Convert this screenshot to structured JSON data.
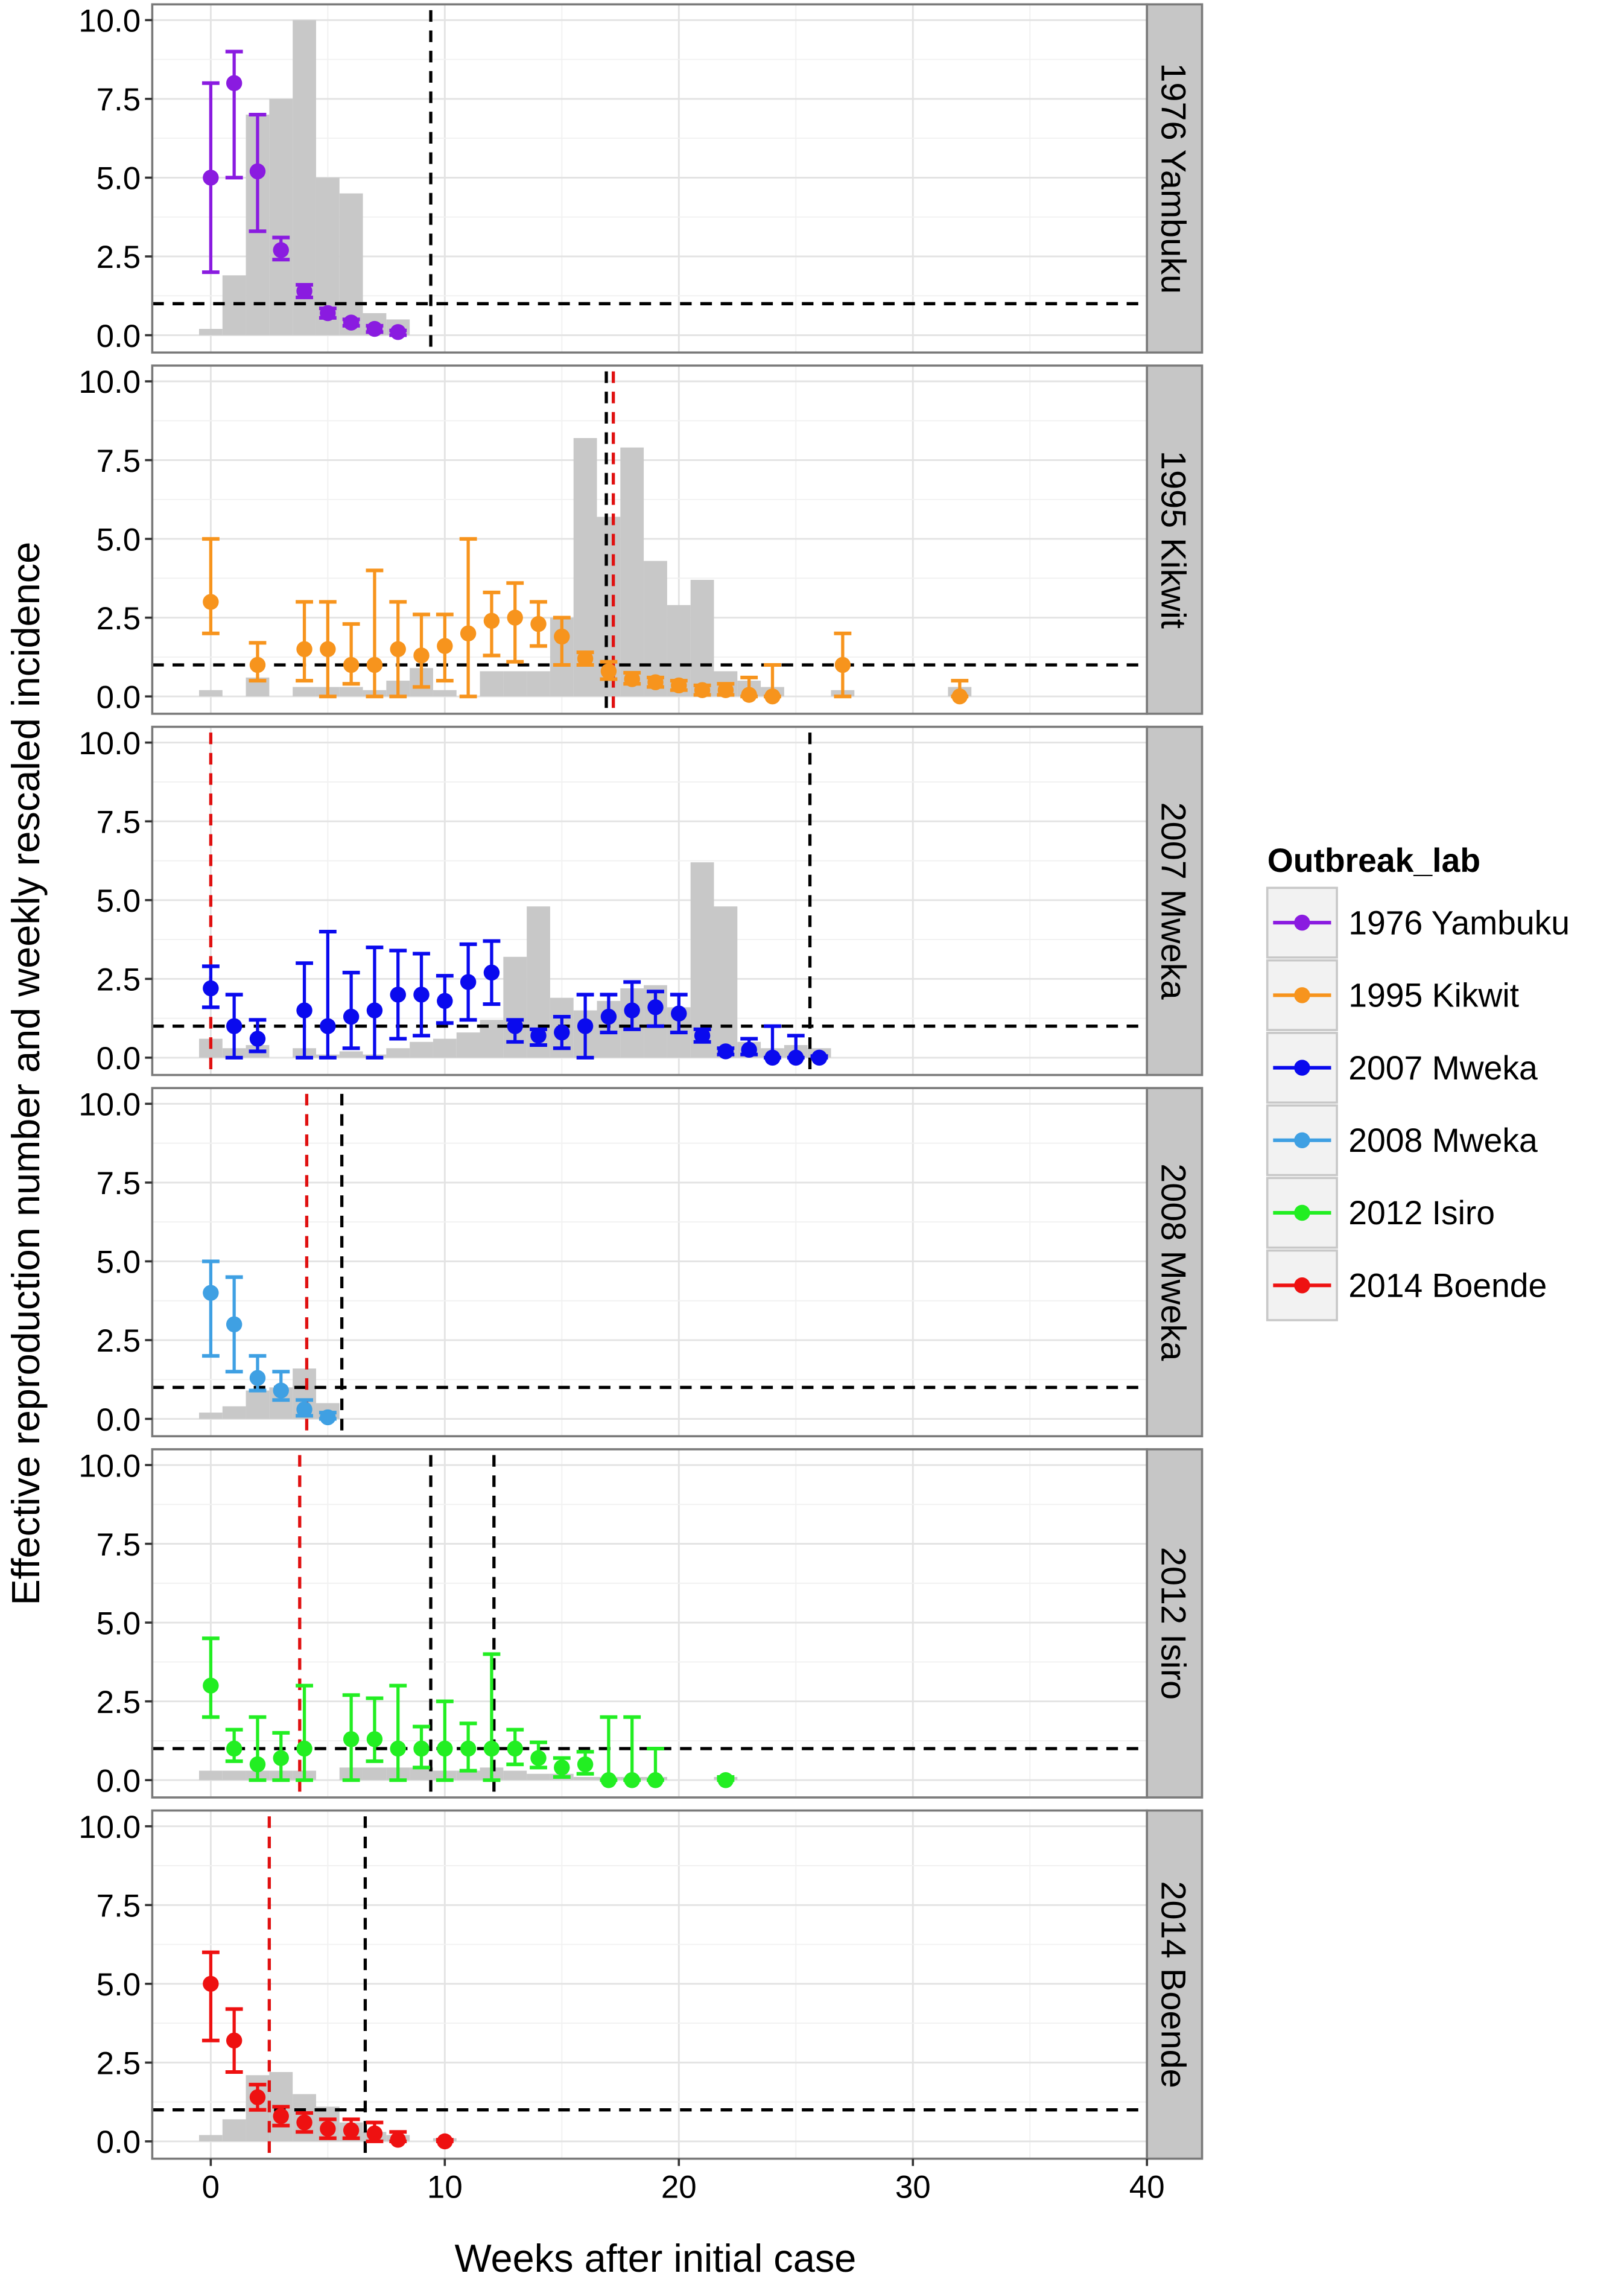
{
  "chart_data": {
    "type": "faceted-errorbar-bar",
    "ylabel": "Effective reproduction number and weekly rescaled incidence",
    "xlabel": "Weeks after initial case",
    "xlim": [
      -2.5,
      40
    ],
    "ylim": [
      -0.55,
      10.5
    ],
    "x_ticks": [
      0,
      10,
      20,
      30,
      40
    ],
    "y_ticks": [
      0,
      2.5,
      5,
      7.5,
      10
    ],
    "y_tick_labels": [
      "0.0",
      "2.5",
      "5.0",
      "7.5",
      "10.0"
    ],
    "x_tick_labels": [
      "0",
      "10",
      "20",
      "30",
      "40"
    ],
    "reference_line_y": 1,
    "legend": {
      "title": "Outbreak_lab",
      "placement": "right",
      "entries": [
        "1976 Yambuku",
        "1995 Kikwit",
        "2007 Mweka",
        "2008 Mweka",
        "2012 Isiro",
        "2014 Boende"
      ]
    },
    "panels": [
      {
        "label": "1976 Yambuku",
        "color": "#8A1BE0",
        "points": [
          [
            0,
            5,
            2,
            8
          ],
          [
            1,
            8,
            5,
            9
          ],
          [
            2,
            5.2,
            3.3,
            7
          ],
          [
            3,
            2.7,
            2.4,
            3.1
          ],
          [
            4,
            1.4,
            1.2,
            1.6
          ],
          [
            5,
            0.7,
            0.55,
            0.85
          ],
          [
            6,
            0.4,
            0.3,
            0.5
          ],
          [
            7,
            0.2,
            0.1,
            0.3
          ],
          [
            8,
            0.1,
            0,
            0.15
          ]
        ],
        "bars": [
          [
            0,
            0.2
          ],
          [
            1,
            1.9
          ],
          [
            2,
            7
          ],
          [
            3,
            7.5
          ],
          [
            4,
            10
          ],
          [
            5,
            5
          ],
          [
            6,
            4.5
          ],
          [
            7,
            0.7
          ],
          [
            8,
            0.5
          ]
        ],
        "vlines_black": [
          9.4
        ],
        "vlines_red": []
      },
      {
        "label": "1995 Kikwit",
        "color": "#F7941D",
        "points": [
          [
            0,
            3,
            2,
            5
          ],
          [
            2,
            1,
            0.5,
            1.7
          ],
          [
            4,
            1.5,
            0.5,
            3
          ],
          [
            5,
            1.5,
            0,
            3
          ],
          [
            6,
            1,
            0.4,
            2.3
          ],
          [
            7,
            1,
            0,
            4
          ],
          [
            8,
            1.5,
            0,
            3
          ],
          [
            9,
            1.3,
            0.3,
            2.6
          ],
          [
            10,
            1.6,
            0.5,
            2.6
          ],
          [
            11,
            2,
            0,
            5
          ],
          [
            12,
            2.4,
            1.3,
            3.3
          ],
          [
            13,
            2.5,
            1.1,
            3.6
          ],
          [
            14,
            2.3,
            1.6,
            3
          ],
          [
            15,
            1.9,
            1,
            2.5
          ],
          [
            16,
            1.2,
            1,
            1.4
          ],
          [
            17,
            0.8,
            0.55,
            1.1
          ],
          [
            18,
            0.55,
            0.4,
            0.75
          ],
          [
            19,
            0.45,
            0.3,
            0.6
          ],
          [
            20,
            0.35,
            0.2,
            0.5
          ],
          [
            21,
            0.2,
            0.05,
            0.35
          ],
          [
            22,
            0.2,
            0.05,
            0.4
          ],
          [
            23,
            0.05,
            0,
            0.6
          ],
          [
            24,
            0,
            0,
            1
          ],
          [
            27,
            1,
            0,
            2
          ],
          [
            32,
            0,
            0,
            0.5
          ]
        ],
        "bars": [
          [
            0,
            0.2
          ],
          [
            2,
            0.6
          ],
          [
            4,
            0.3
          ],
          [
            5,
            0.3
          ],
          [
            6,
            0.3
          ],
          [
            7,
            0.2
          ],
          [
            8,
            0.5
          ],
          [
            9,
            0.9
          ],
          [
            10,
            0.2
          ],
          [
            12,
            0.8
          ],
          [
            13,
            0.8
          ],
          [
            14,
            0.8
          ],
          [
            15,
            2.5
          ],
          [
            16,
            8.2
          ],
          [
            17,
            5.7
          ],
          [
            18,
            7.9
          ],
          [
            19,
            4.3
          ],
          [
            20,
            2.9
          ],
          [
            21,
            3.7
          ],
          [
            22,
            0.8
          ],
          [
            23,
            0.5
          ],
          [
            24,
            0.3
          ],
          [
            27,
            0.2
          ],
          [
            32,
            0.3
          ]
        ],
        "vlines_black": [
          16.9
        ],
        "vlines_red": [
          17.2
        ]
      },
      {
        "label": "2007 Mweka",
        "color": "#0A0AEE",
        "points": [
          [
            0,
            2.2,
            1.6,
            2.9
          ],
          [
            1,
            1,
            0,
            2
          ],
          [
            2,
            0.6,
            0.2,
            1.2
          ],
          [
            4,
            1.5,
            0,
            3
          ],
          [
            5,
            1,
            0,
            4
          ],
          [
            6,
            1.3,
            0.3,
            2.7
          ],
          [
            7,
            1.5,
            0,
            3.5
          ],
          [
            8,
            2,
            0.6,
            3.4
          ],
          [
            9,
            2,
            0.7,
            3.3
          ],
          [
            10,
            1.8,
            1.1,
            2.6
          ],
          [
            11,
            2.4,
            1.2,
            3.6
          ],
          [
            12,
            2.7,
            1.7,
            3.7
          ],
          [
            13,
            1,
            0.5,
            1.2
          ],
          [
            14,
            0.7,
            0.4,
            0.9
          ],
          [
            15,
            0.8,
            0.3,
            1.3
          ],
          [
            16,
            1,
            0,
            2
          ],
          [
            17,
            1.3,
            0.8,
            2
          ],
          [
            18,
            1.5,
            0.9,
            2.4
          ],
          [
            19,
            1.6,
            1,
            2.1
          ],
          [
            20,
            1.4,
            0.8,
            2
          ],
          [
            21,
            0.7,
            0.5,
            0.9
          ],
          [
            22,
            0.2,
            0.1,
            0.3
          ],
          [
            23,
            0.25,
            0.1,
            0.6
          ],
          [
            24,
            0,
            0,
            1
          ],
          [
            25,
            0,
            0,
            0.7
          ],
          [
            26,
            0,
            0,
            0.05
          ]
        ],
        "bars": [
          [
            0,
            0.6
          ],
          [
            1,
            0.3
          ],
          [
            2,
            0.4
          ],
          [
            4,
            0.3
          ],
          [
            5,
            0.1
          ],
          [
            6,
            0.2
          ],
          [
            7,
            0.1
          ],
          [
            8,
            0.3
          ],
          [
            9,
            0.5
          ],
          [
            10,
            0.6
          ],
          [
            11,
            0.8
          ],
          [
            12,
            1.2
          ],
          [
            13,
            3.2
          ],
          [
            14,
            4.8
          ],
          [
            15,
            1.9
          ],
          [
            16,
            1.5
          ],
          [
            17,
            1.8
          ],
          [
            18,
            2.2
          ],
          [
            19,
            2.3
          ],
          [
            20,
            1.6
          ],
          [
            21,
            6.2
          ],
          [
            22,
            4.8
          ],
          [
            23,
            0.5
          ],
          [
            24,
            0.3
          ],
          [
            25,
            0.4
          ],
          [
            26,
            0.3
          ]
        ],
        "vlines_black": [
          25.6
        ],
        "vlines_red": [
          0
        ]
      },
      {
        "label": "2008 Mweka",
        "color": "#3FA0E3",
        "points": [
          [
            0,
            4,
            2,
            5
          ],
          [
            1,
            3,
            1.5,
            4.5
          ],
          [
            2,
            1.3,
            0.9,
            2
          ],
          [
            3,
            0.9,
            0.6,
            1.5
          ],
          [
            4,
            0.3,
            0.1,
            0.6
          ],
          [
            5,
            0.05,
            0,
            0.2
          ]
        ],
        "bars": [
          [
            0,
            0.2
          ],
          [
            1,
            0.4
          ],
          [
            2,
            0.9
          ],
          [
            3,
            1
          ],
          [
            4,
            1.6
          ],
          [
            5,
            0.5
          ]
        ],
        "vlines_black": [
          5.6
        ],
        "vlines_red": [
          4.1
        ]
      },
      {
        "label": "2012 Isiro",
        "color": "#22EE22",
        "points": [
          [
            0,
            3,
            2,
            4.5
          ],
          [
            1,
            1,
            0.6,
            1.6
          ],
          [
            2,
            0.5,
            0,
            2
          ],
          [
            3,
            0.7,
            0,
            1.5
          ],
          [
            4,
            1,
            0,
            3
          ],
          [
            6,
            1.3,
            0,
            2.7
          ],
          [
            7,
            1.3,
            0.6,
            2.6
          ],
          [
            8,
            1,
            0,
            3
          ],
          [
            9,
            1,
            0.4,
            1.7
          ],
          [
            10,
            1,
            0,
            2.5
          ],
          [
            11,
            1,
            0.3,
            1.8
          ],
          [
            12,
            1,
            0,
            4
          ],
          [
            13,
            1,
            0.5,
            1.6
          ],
          [
            14,
            0.7,
            0.4,
            1.2
          ],
          [
            15,
            0.4,
            0.1,
            0.7
          ],
          [
            16,
            0.5,
            0.2,
            0.9
          ],
          [
            17,
            0,
            0,
            2
          ],
          [
            18,
            0,
            0,
            2
          ],
          [
            19,
            0,
            0,
            1
          ],
          [
            22,
            0,
            0,
            0.1
          ]
        ],
        "bars": [
          [
            0,
            0.3
          ],
          [
            1,
            0.3
          ],
          [
            2,
            0.3
          ],
          [
            3,
            0.3
          ],
          [
            4,
            0.3
          ],
          [
            6,
            0.4
          ],
          [
            7,
            0.4
          ],
          [
            8,
            0.4
          ],
          [
            9,
            0.4
          ],
          [
            10,
            0.3
          ],
          [
            11,
            0.3
          ],
          [
            12,
            0.4
          ],
          [
            13,
            0.3
          ],
          [
            14,
            0.2
          ],
          [
            15,
            0.2
          ],
          [
            16,
            0.1
          ],
          [
            17,
            0.1
          ],
          [
            18,
            0.1
          ],
          [
            19,
            0.1
          ],
          [
            22,
            0.1
          ]
        ],
        "vlines_black": [
          9.4,
          12.1
        ],
        "vlines_red": [
          3.8
        ]
      },
      {
        "label": "2014 Boende",
        "color": "#EE1111",
        "points": [
          [
            0,
            5,
            3.2,
            6
          ],
          [
            1,
            3.2,
            2.2,
            4.2
          ],
          [
            2,
            1.4,
            1,
            1.8
          ],
          [
            3,
            0.8,
            0.5,
            1.1
          ],
          [
            4,
            0.6,
            0.3,
            0.9
          ],
          [
            5,
            0.4,
            0.1,
            0.7
          ],
          [
            6,
            0.35,
            0.1,
            0.7
          ],
          [
            7,
            0.25,
            0,
            0.6
          ],
          [
            8,
            0.05,
            0,
            0.3
          ],
          [
            10,
            0,
            0,
            0.05
          ]
        ],
        "bars": [
          [
            0,
            0.2
          ],
          [
            1,
            0.7
          ],
          [
            2,
            2.1
          ],
          [
            3,
            2.2
          ],
          [
            4,
            1.5
          ],
          [
            5,
            1.1
          ],
          [
            6,
            0.6
          ],
          [
            7,
            0.3
          ],
          [
            8,
            0.2
          ],
          [
            10,
            0.1
          ]
        ],
        "vlines_black": [
          6.6
        ],
        "vlines_red": [
          2.5
        ]
      }
    ]
  }
}
